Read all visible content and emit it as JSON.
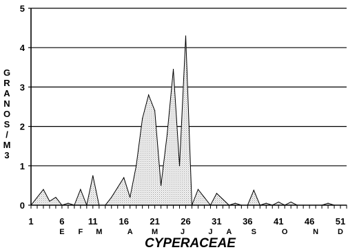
{
  "chart_data": {
    "type": "area",
    "title": "CYPERACEAE",
    "ylabel": "GRANOS / M3",
    "xlim": [
      1,
      52
    ],
    "ylim": [
      0,
      5
    ],
    "y_ticks": [
      0,
      1,
      2,
      3,
      4,
      5
    ],
    "x_ticks": [
      1,
      6,
      11,
      16,
      21,
      26,
      31,
      36,
      41,
      46,
      51
    ],
    "grid": "horizontal",
    "months": [
      {
        "label": "E",
        "x": 6
      },
      {
        "label": "F",
        "x": 9
      },
      {
        "label": "M",
        "x": 12
      },
      {
        "label": "A",
        "x": 17
      },
      {
        "label": "M",
        "x": 21
      },
      {
        "label": "J",
        "x": 25.5
      },
      {
        "label": "J",
        "x": 30
      },
      {
        "label": "A",
        "x": 33
      },
      {
        "label": "S",
        "x": 37
      },
      {
        "label": "O",
        "x": 42
      },
      {
        "label": "N",
        "x": 47
      },
      {
        "label": "D",
        "x": 51
      }
    ],
    "x": [
      1,
      2,
      3,
      4,
      5,
      6,
      7,
      8,
      9,
      10,
      11,
      12,
      13,
      14,
      15,
      16,
      17,
      18,
      19,
      20,
      21,
      22,
      23,
      24,
      25,
      26,
      27,
      28,
      29,
      30,
      31,
      32,
      33,
      34,
      35,
      36,
      37,
      38,
      39,
      40,
      41,
      42,
      43,
      44,
      45,
      46,
      47,
      48,
      49,
      50,
      51,
      52
    ],
    "series": [
      {
        "values": [
          0.0,
          0.2,
          0.4,
          0.1,
          0.2,
          0.0,
          0.05,
          0.0,
          0.4,
          0.0,
          0.75,
          0.0,
          0.0,
          0.2,
          0.45,
          0.7,
          0.2,
          1.0,
          2.2,
          2.8,
          2.4,
          0.5,
          1.8,
          3.45,
          1.0,
          4.3,
          0.0,
          0.4,
          0.2,
          0.0,
          0.3,
          0.15,
          0.0,
          0.05,
          0.0,
          0.0,
          0.38,
          0.0,
          0.05,
          0.0,
          0.08,
          0.0,
          0.08,
          0.0,
          0.0,
          0.0,
          0.0,
          0.0,
          0.05,
          0.0,
          0.0,
          0.0
        ]
      }
    ]
  }
}
